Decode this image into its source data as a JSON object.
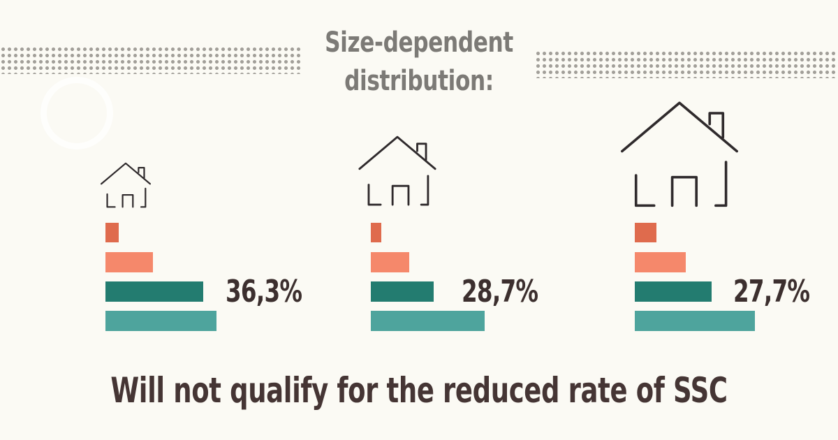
{
  "title": "Size-dependent distribution:",
  "footer": "Will not qualify for the reduced rate of SSC",
  "chart_data": {
    "type": "bar",
    "orientation": "horizontal",
    "series_colors": [
      "#df6b4d",
      "#f5886b",
      "#237c70",
      "#4ea49d"
    ],
    "groups": [
      {
        "label": "36,3%",
        "icon": "small-house-icon",
        "values": [
          19,
          68,
          140,
          159
        ]
      },
      {
        "label": "28,7%",
        "icon": "medium-house-icon",
        "values": [
          15,
          55,
          90,
          163
        ]
      },
      {
        "label": "27,7%",
        "icon": "large-house-icon",
        "values": [
          31,
          73,
          110,
          172
        ]
      }
    ],
    "xlim": [
      0,
      180
    ],
    "grid": false
  }
}
